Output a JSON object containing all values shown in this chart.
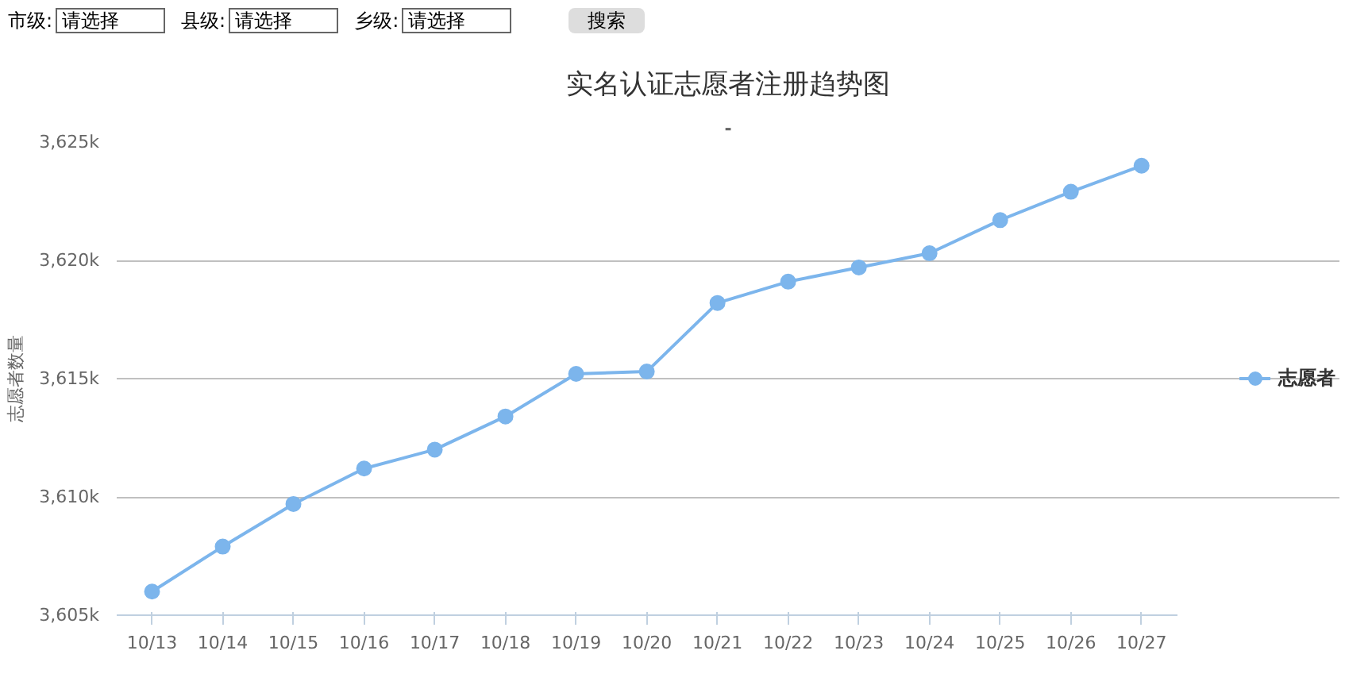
{
  "chart_data": {
    "type": "line",
    "title": "实名认证志愿者注册趋势图",
    "subtitle": "-",
    "ylabel": "志愿者数量",
    "annotations": [
      "市级:",
      "请选择",
      "县级:",
      "请选择",
      "乡级:",
      "请选择",
      "搜索"
    ],
    "categories": [
      "10/13",
      "10/14",
      "10/15",
      "10/16",
      "10/17",
      "10/18",
      "10/19",
      "10/20",
      "10/21",
      "10/22",
      "10/23",
      "10/24",
      "10/25",
      "10/26",
      "10/27"
    ],
    "series": [
      {
        "name": "志愿者",
        "color": "#7cb5ec",
        "values": [
          3606.0,
          3607.9,
          3609.7,
          3611.2,
          3612.0,
          3613.4,
          3615.2,
          3615.3,
          3618.2,
          3619.1,
          3619.7,
          3620.3,
          3621.7,
          3622.9,
          3624.0
        ]
      }
    ],
    "ylim": [
      3605,
      3625
    ],
    "yticks": [
      {
        "value": 3605,
        "label": "3,605k"
      },
      {
        "value": 3610,
        "label": "3,610k"
      },
      {
        "value": 3615,
        "label": "3,615k"
      },
      {
        "value": 3620,
        "label": "3,620k"
      },
      {
        "value": 3625,
        "label": "3,625k"
      }
    ],
    "grid": "y",
    "legend": "right",
    "marker": "circle",
    "line_style": "solid"
  }
}
